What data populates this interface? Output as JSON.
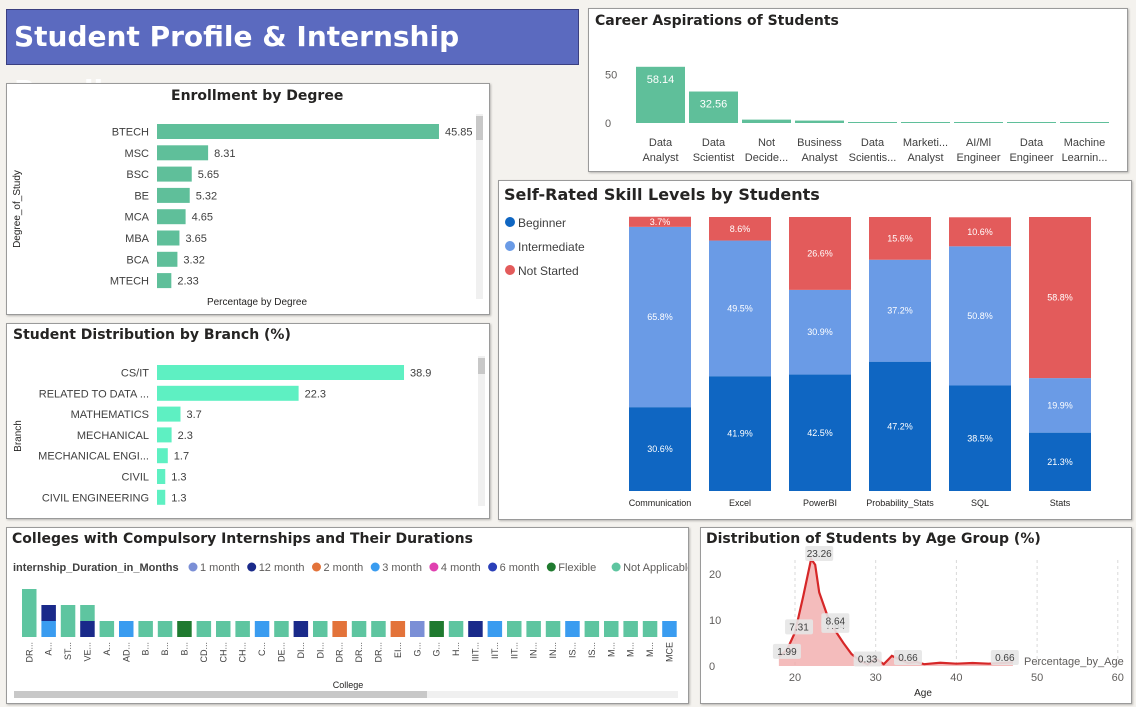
{
  "dashboard_title": "Student Profile & Internship Readiness",
  "colors": {
    "title_bg": "#5b6abf",
    "degree_bar": "#5fbf9a",
    "branch_bar": "#5ef0c2",
    "beginner": "#0f66c2",
    "intermediate": "#6a9be6",
    "not_started": "#e35b5b",
    "age_line": "#d62728",
    "age_fill": "#f0a6a6"
  },
  "chart_data": [
    {
      "id": "career",
      "type": "bar",
      "title": "Career Aspirations of Students",
      "categories": [
        "Data Analyst",
        "Data Scientist",
        "Not Decide...",
        "Business Analyst",
        "Data Scientis...",
        "Marketi... Analyst",
        "AI/Ml Engineer",
        "Data Engineer",
        "Machine Learnin..."
      ],
      "values": [
        58.14,
        32.56,
        3.5,
        2.5,
        1.0,
        1.0,
        1.0,
        1.0,
        1.0
      ],
      "data_labels": [
        "58.14",
        "32.56",
        "",
        "",
        "",
        "",
        "",
        "",
        ""
      ],
      "yticks": [
        "0",
        "50"
      ],
      "ylim": [
        0,
        60
      ]
    },
    {
      "id": "degree",
      "type": "bar",
      "orientation": "horizontal",
      "title": "Enrollment by Degree",
      "xlabel": "Percentage by Degree",
      "ylabel": "Degree_of_Study",
      "categories": [
        "BTECH",
        "MSC",
        "BSC",
        "BE",
        "MCA",
        "MBA",
        "BCA",
        "MTECH"
      ],
      "values": [
        45.85,
        8.31,
        5.65,
        5.32,
        4.65,
        3.65,
        3.32,
        2.33
      ],
      "data_labels": [
        "45.85",
        "8.31",
        "5.65",
        "5.32",
        "4.65",
        "3.65",
        "3.32",
        "2.33"
      ]
    },
    {
      "id": "branch",
      "type": "bar",
      "orientation": "horizontal",
      "title": "Student Distribution by Branch (%)",
      "ylabel": "Branch",
      "categories": [
        "CS/IT",
        "RELATED TO DATA ...",
        "MATHEMATICS",
        "MECHANICAL",
        "MECHANICAL ENGI...",
        "CIVIL",
        "CIVIL ENGINEERING"
      ],
      "values": [
        38.9,
        22.3,
        3.7,
        2.3,
        1.7,
        1.3,
        1.3
      ],
      "data_labels": [
        "38.9",
        "22.3",
        "3.7",
        "2.3",
        "1.7",
        "1.3",
        "1.3"
      ]
    },
    {
      "id": "skills",
      "type": "bar",
      "stacked": "100%",
      "title": "Self-Rated Skill Levels by Students",
      "legend": [
        "Beginner",
        "Intermediate",
        "Not Started"
      ],
      "legend_position": "top-left",
      "categories": [
        "Communication",
        "Excel",
        "PowerBI",
        "Probability_Stats",
        "SQL",
        "Stats"
      ],
      "series": [
        {
          "name": "Beginner",
          "values": [
            30.6,
            41.9,
            42.5,
            47.2,
            38.5,
            21.3
          ],
          "labels": [
            "30.6%",
            "41.9%",
            "42.5%",
            "47.2%",
            "38.5%",
            "21.3%"
          ]
        },
        {
          "name": "Intermediate",
          "values": [
            65.8,
            49.5,
            30.9,
            37.2,
            50.8,
            19.9
          ],
          "labels": [
            "65.8%",
            "49.5%",
            "30.9%",
            "37.2%",
            "50.8%",
            "19.9%"
          ]
        },
        {
          "name": "Not Started",
          "values": [
            3.7,
            8.6,
            26.6,
            15.6,
            10.6,
            58.8
          ],
          "labels": [
            "3.7%",
            "8.6%",
            "26.6%",
            "15.6%",
            "10.6%",
            "58.8%"
          ]
        }
      ]
    },
    {
      "id": "colleges",
      "type": "bar",
      "stacked": true,
      "title": "Colleges with Compulsory Internships and Their Durations",
      "xlabel": "College",
      "legend_title": "internship_Duration_in_Months",
      "legend": [
        {
          "name": "1 month",
          "color": "#7b8fd6"
        },
        {
          "name": "12 month",
          "color": "#1a2a8a"
        },
        {
          "name": "2 month",
          "color": "#e3733a"
        },
        {
          "name": "3 month",
          "color": "#3a9cf0"
        },
        {
          "name": "4 month",
          "color": "#e040b0"
        },
        {
          "name": "6 month",
          "color": "#2a3fb8"
        },
        {
          "name": "Flexible",
          "color": "#1f7a2f"
        },
        {
          "name": "Not Applicable",
          "color": "#5ec5a0"
        }
      ],
      "legend_position": "top",
      "categories": [
        "DR...",
        "A...",
        "ST...",
        "VE...",
        "A...",
        "AD...",
        "B...",
        "B...",
        "B...",
        "CD...",
        "CH...",
        "CH...",
        "C...",
        "DE...",
        "DI...",
        "DI...",
        "DR...",
        "DR...",
        "DR...",
        "EI...",
        "G...",
        "G...",
        "H...",
        "IIIT...",
        "IIT...",
        "IIT...",
        "IN...",
        "IN...",
        "IS...",
        "IS...",
        "M...",
        "M...",
        "M...",
        "MCE"
      ],
      "segments": [
        [
          [
            "Not Applicable",
            3
          ]
        ],
        [
          [
            "3 month",
            1
          ],
          [
            "12 month",
            1
          ]
        ],
        [
          [
            "Not Applicable",
            2
          ]
        ],
        [
          [
            "12 month",
            1
          ],
          [
            "Not Applicable",
            1
          ]
        ],
        [
          [
            "Not Applicable",
            1
          ]
        ],
        [
          [
            "3 month",
            1
          ]
        ],
        [
          [
            "Not Applicable",
            1
          ]
        ],
        [
          [
            "Not Applicable",
            1
          ]
        ],
        [
          [
            "Flexible",
            1
          ]
        ],
        [
          [
            "Not Applicable",
            1
          ]
        ],
        [
          [
            "Not Applicable",
            1
          ]
        ],
        [
          [
            "Not Applicable",
            1
          ]
        ],
        [
          [
            "3 month",
            1
          ]
        ],
        [
          [
            "Not Applicable",
            1
          ]
        ],
        [
          [
            "12 month",
            1
          ]
        ],
        [
          [
            "Not Applicable",
            1
          ]
        ],
        [
          [
            "2 month",
            1
          ]
        ],
        [
          [
            "Not Applicable",
            1
          ]
        ],
        [
          [
            "Not Applicable",
            1
          ]
        ],
        [
          [
            "2 month",
            1
          ]
        ],
        [
          [
            "1 month",
            1
          ]
        ],
        [
          [
            "Flexible",
            1
          ]
        ],
        [
          [
            "Not Applicable",
            1
          ]
        ],
        [
          [
            "12 month",
            1
          ]
        ],
        [
          [
            "3 month",
            1
          ]
        ],
        [
          [
            "Not Applicable",
            1
          ]
        ],
        [
          [
            "Not Applicable",
            1
          ]
        ],
        [
          [
            "Not Applicable",
            1
          ]
        ],
        [
          [
            "3 month",
            1
          ]
        ],
        [
          [
            "Not Applicable",
            1
          ]
        ],
        [
          [
            "Not Applicable",
            1
          ]
        ],
        [
          [
            "Not Applicable",
            1
          ]
        ],
        [
          [
            "Not Applicable",
            1
          ]
        ],
        [
          [
            "3 month",
            1
          ]
        ]
      ]
    },
    {
      "id": "age",
      "type": "area",
      "title": "Distribution of Students by Age Group (%)",
      "xlabel": "Age",
      "ylabel": "Percentage_by_Age",
      "xticks": [
        "20",
        "30",
        "40",
        "50",
        "60"
      ],
      "yticks": [
        "0",
        "10",
        "20"
      ],
      "xlim": [
        17,
        62
      ],
      "ylim": [
        0,
        23
      ],
      "x": [
        18,
        19,
        20,
        21,
        22,
        22.5,
        23,
        24,
        25,
        26,
        27,
        28,
        29,
        30,
        31,
        32,
        33,
        34,
        35,
        36,
        38,
        40,
        42,
        44,
        46,
        47
      ],
      "y": [
        1.99,
        3.5,
        7.31,
        15,
        23.26,
        22,
        16,
        11,
        7.64,
        5,
        2.6,
        1.2,
        0.33,
        1.6,
        0.4,
        2.2,
        1.4,
        0.66,
        0.9,
        0.4,
        0.7,
        0.5,
        0.66,
        0.5,
        0.7,
        0.8
      ],
      "point_labels": [
        {
          "x": 19,
          "y": 1.99,
          "text": "1.99"
        },
        {
          "x": 20.5,
          "y": 7.31,
          "text": "7.31"
        },
        {
          "x": 23,
          "y": 23.26,
          "text": "23.26"
        },
        {
          "x": 25,
          "y": 7.64,
          "text": "7.64"
        },
        {
          "x": 25,
          "y": 8.64,
          "text": "8.64"
        },
        {
          "x": 29,
          "y": 0.33,
          "text": "0.33"
        },
        {
          "x": 34,
          "y": 0.66,
          "text": "0.66"
        },
        {
          "x": 46,
          "y": 0.66,
          "text": "0.66"
        }
      ]
    }
  ]
}
